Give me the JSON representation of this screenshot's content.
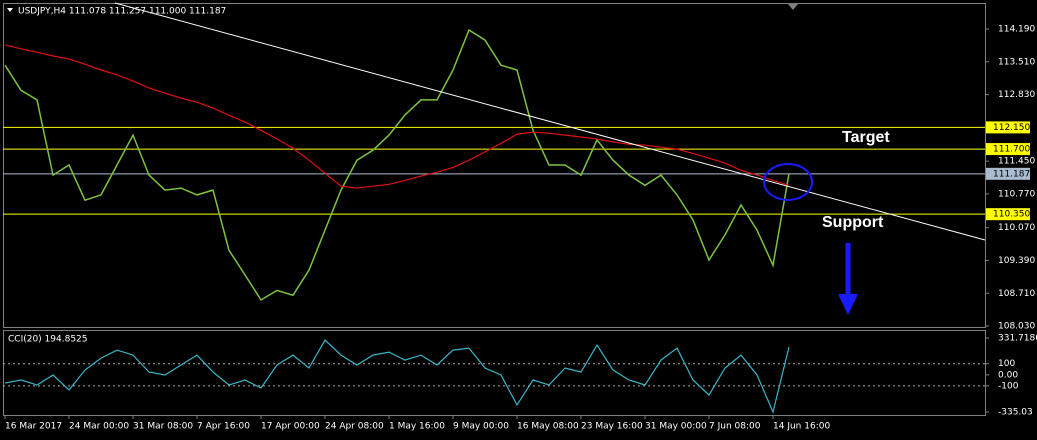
{
  "chart_data": [
    {
      "type": "line",
      "title": "USDJPY,H4  111.078 111.257 111.000 111.187",
      "annotations": [
        "Target",
        "Support"
      ],
      "categories": [
        "16 Mar 2017",
        null,
        null,
        null,
        "24 Mar 00:00",
        null,
        null,
        null,
        "31 Mar 08:00",
        null,
        null,
        null,
        "7 Apr 16:00",
        null,
        null,
        null,
        "17 Apr 00:00",
        null,
        null,
        null,
        "24 Apr 08:00",
        null,
        null,
        null,
        "1 May 16:00",
        null,
        null,
        null,
        "9 May 00:00",
        null,
        null,
        null,
        "16 May 08:00",
        null,
        null,
        null,
        "23 May 16:00",
        null,
        null,
        null,
        "31 May 00:00",
        null,
        null,
        null,
        "7 Jun 08:00",
        null,
        null,
        null,
        "14 Jun 16:00",
        null
      ],
      "series": [
        {
          "color": "#7cc341",
          "values": [
            113.44,
            112.92,
            112.72,
            111.16,
            111.37,
            110.64,
            110.75,
            111.37,
            111.99,
            111.16,
            110.85,
            110.89,
            110.75,
            110.85,
            109.6,
            109.09,
            108.57,
            108.77,
            108.67,
            109.19,
            110.02,
            110.85,
            111.47,
            111.68,
            111.99,
            112.41,
            112.72,
            112.72,
            113.34,
            114.17,
            113.96,
            113.44,
            113.34,
            112.09,
            111.37,
            111.37,
            111.16,
            111.89,
            111.47,
            111.16,
            110.95,
            111.16,
            110.75,
            110.23,
            109.4,
            109.92,
            110.54,
            110.02,
            109.29,
            111.187
          ]
        },
        {
          "color": "#e01010",
          "values": [
            113.86,
            113.78,
            113.71,
            113.63,
            113.57,
            113.46,
            113.34,
            113.24,
            113.11,
            112.97,
            112.86,
            112.76,
            112.67,
            112.55,
            112.4,
            112.26,
            112.09,
            111.91,
            111.72,
            111.47,
            111.2,
            110.93,
            110.89,
            110.93,
            110.97,
            111.05,
            111.14,
            111.22,
            111.32,
            111.47,
            111.64,
            111.82,
            112.01,
            112.05,
            112.03,
            111.99,
            111.95,
            111.91,
            111.85,
            111.8,
            111.78,
            111.74,
            111.7,
            111.61,
            111.51,
            111.41,
            111.26,
            111.16,
            111.05,
            110.95
          ]
        }
      ],
      "ylim": [
        108.01,
        114.73
      ],
      "yticks": [
        {
          "value": 114.19,
          "label": "114.190"
        },
        {
          "value": 113.51,
          "label": "113.510"
        },
        {
          "value": 112.83,
          "label": "112.830"
        },
        {
          "value": 111.45,
          "label": "111.450"
        },
        {
          "value": 110.77,
          "label": "110.770"
        },
        {
          "value": 110.07,
          "label": "110.070"
        },
        {
          "value": 109.39,
          "label": "109.390"
        },
        {
          "value": 108.71,
          "label": "108.710"
        },
        {
          "value": 108.03,
          "label": "108.030"
        }
      ],
      "levels": [
        {
          "value": 112.15,
          "label": "112.150",
          "color": "#ffff00"
        },
        {
          "value": 111.7,
          "label": "111.700",
          "color": "#ffff00"
        },
        {
          "value": 111.187,
          "label": "111.187",
          "color": "#a9bccf"
        },
        {
          "value": 110.35,
          "label": "110.350",
          "color": "#ffff00"
        }
      ]
    },
    {
      "type": "line",
      "title": "CCI(20) 194.8525",
      "series": [
        {
          "color": "#3bb6c8",
          "values": [
            -74,
            -47,
            -92,
            -2,
            -137,
            43,
            151,
            223,
            178,
            25,
            -2,
            88,
            178,
            25,
            -92,
            -47,
            -119,
            88,
            178,
            61,
            313,
            178,
            88,
            178,
            205,
            133,
            178,
            88,
            223,
            241,
            61,
            -2,
            -272,
            -47,
            -92,
            61,
            25,
            268,
            43,
            -47,
            -92,
            133,
            241,
            -47,
            -182,
            61,
            178,
            -2,
            -335,
            251
          ]
        }
      ],
      "ylim": [
        -335.03,
        331.7186
      ],
      "yticks": [
        331.7186,
        100,
        {
          "value": 0,
          "label": "0.00"
        },
        -100,
        -335.03
      ],
      "levels": [
        100,
        -100
      ]
    }
  ]
}
